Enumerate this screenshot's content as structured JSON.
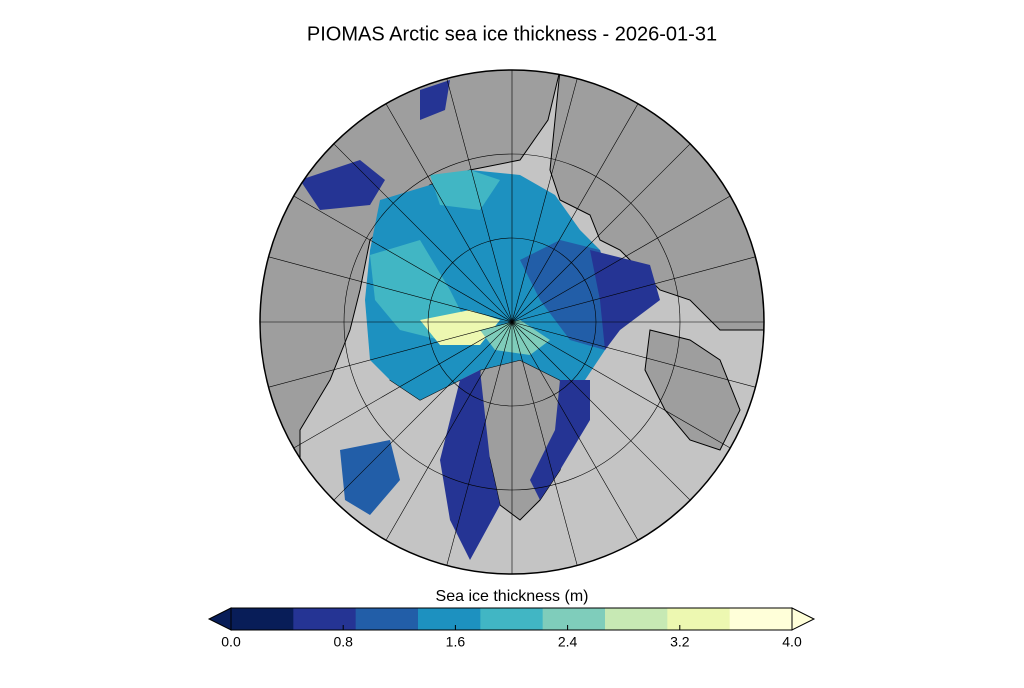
{
  "map": {
    "title": "PIOMAS Arctic sea ice thickness - 2026-01-31",
    "colorbar": {
      "label": "Sea ice thickness (m)",
      "range": [
        0,
        4
      ],
      "colors": [
        "#081d58",
        "#253494",
        "#225ea8",
        "#1d91c0",
        "#41b6c4",
        "#7fcdbb",
        "#c7e9b4",
        "#edf8b1",
        "#ffffd9"
      ],
      "ticks": [
        {
          "value": 0,
          "label": "0.0"
        },
        {
          "value": 0.8,
          "label": "0.8"
        },
        {
          "value": 1.6,
          "label": "1.6"
        },
        {
          "value": 2.4,
          "label": "2.4"
        },
        {
          "value": 3.2,
          "label": "3.2"
        },
        {
          "value": 4,
          "label": "4.0"
        }
      ]
    }
  }
}
